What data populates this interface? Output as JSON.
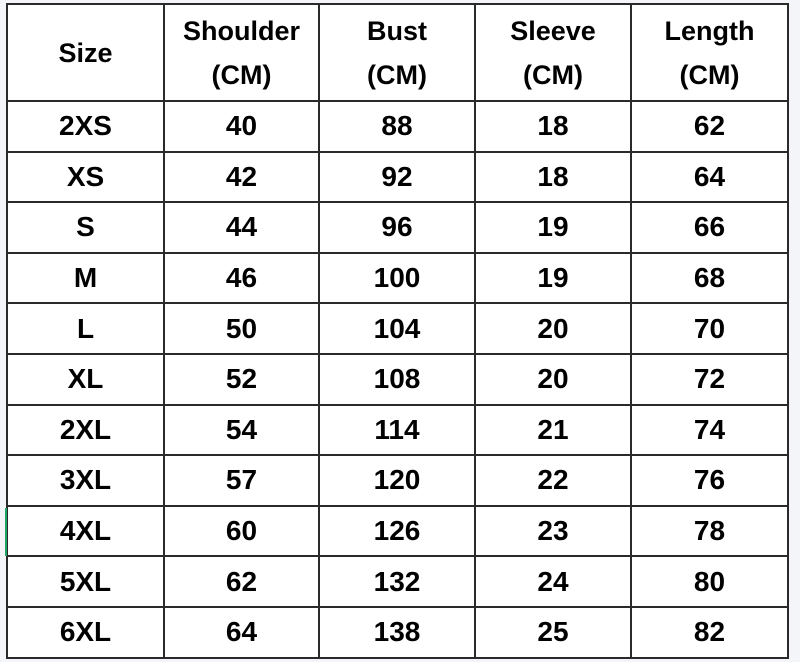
{
  "headers": [
    {
      "line1": "Size",
      "line2": ""
    },
    {
      "line1": "Shoulder",
      "line2": "(CM)"
    },
    {
      "line1": "Bust",
      "line2": "(CM)"
    },
    {
      "line1": "Sleeve",
      "line2": "(CM)"
    },
    {
      "line1": "Length",
      "line2": "(CM)"
    }
  ],
  "rows": [
    [
      "2XS",
      "40",
      "88",
      "18",
      "62"
    ],
    [
      "XS",
      "42",
      "92",
      "18",
      "64"
    ],
    [
      "S",
      "44",
      "96",
      "19",
      "66"
    ],
    [
      "M",
      "46",
      "100",
      "19",
      "68"
    ],
    [
      "L",
      "50",
      "104",
      "20",
      "70"
    ],
    [
      "XL",
      "52",
      "108",
      "20",
      "72"
    ],
    [
      "2XL",
      "54",
      "114",
      "21",
      "74"
    ],
    [
      "3XL",
      "57",
      "120",
      "22",
      "76"
    ],
    [
      "4XL",
      "60",
      "126",
      "23",
      "78"
    ],
    [
      "5XL",
      "62",
      "132",
      "24",
      "80"
    ],
    [
      "6XL",
      "64",
      "138",
      "25",
      "82"
    ]
  ]
}
